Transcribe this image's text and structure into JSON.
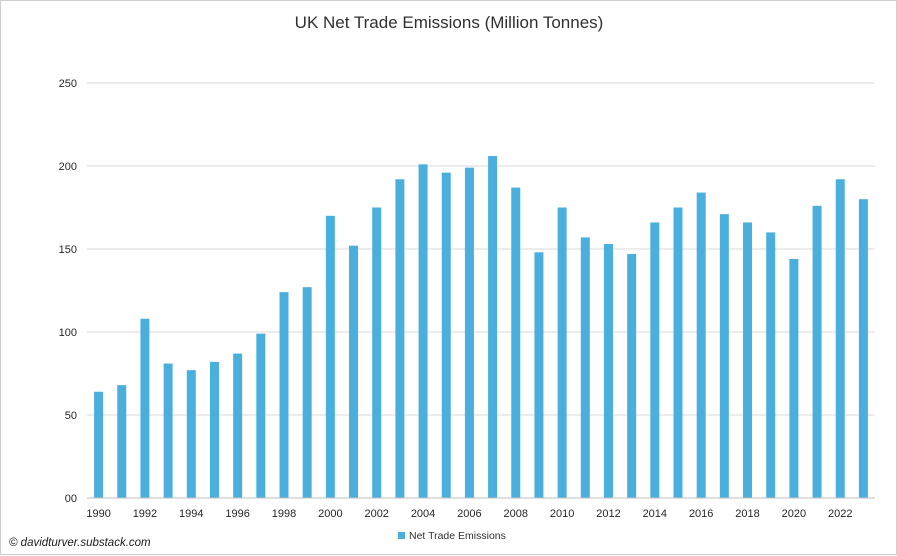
{
  "chart_data": {
    "type": "bar",
    "title": "UK Net Trade Emissions (Million Tonnes)",
    "xlabel": "",
    "ylabel": "",
    "ylim": [
      0,
      250
    ],
    "yticks": [
      "00",
      "50",
      "100",
      "150",
      "200",
      "250"
    ],
    "ytick_values": [
      0,
      50,
      100,
      150,
      200,
      250
    ],
    "grid": "horizontal",
    "legend_position": "bottom",
    "categories": [
      "1990",
      "1991",
      "1992",
      "1993",
      "1994",
      "1995",
      "1996",
      "1997",
      "1998",
      "1999",
      "2000",
      "2001",
      "2002",
      "2003",
      "2004",
      "2005",
      "2006",
      "2007",
      "2008",
      "2009",
      "2010",
      "2011",
      "2012",
      "2013",
      "2014",
      "2015",
      "2016",
      "2017",
      "2018",
      "2019",
      "2020",
      "2021",
      "2022",
      "2023"
    ],
    "xtick_labels": [
      "1990",
      "1992",
      "1994",
      "1996",
      "1998",
      "2000",
      "2002",
      "2004",
      "2006",
      "2008",
      "2010",
      "2012",
      "2014",
      "2016",
      "2018",
      "2020",
      "2022"
    ],
    "series": [
      {
        "name": "Net Trade Emissions",
        "color": "#4bafde",
        "values": [
          64,
          68,
          108,
          81,
          77,
          82,
          87,
          99,
          124,
          127,
          170,
          152,
          175,
          192,
          201,
          196,
          199,
          206,
          187,
          148,
          175,
          157,
          153,
          147,
          166,
          175,
          184,
          171,
          166,
          160,
          144,
          176,
          192,
          180
        ]
      }
    ]
  },
  "credit": "© davidturver.substack.com"
}
